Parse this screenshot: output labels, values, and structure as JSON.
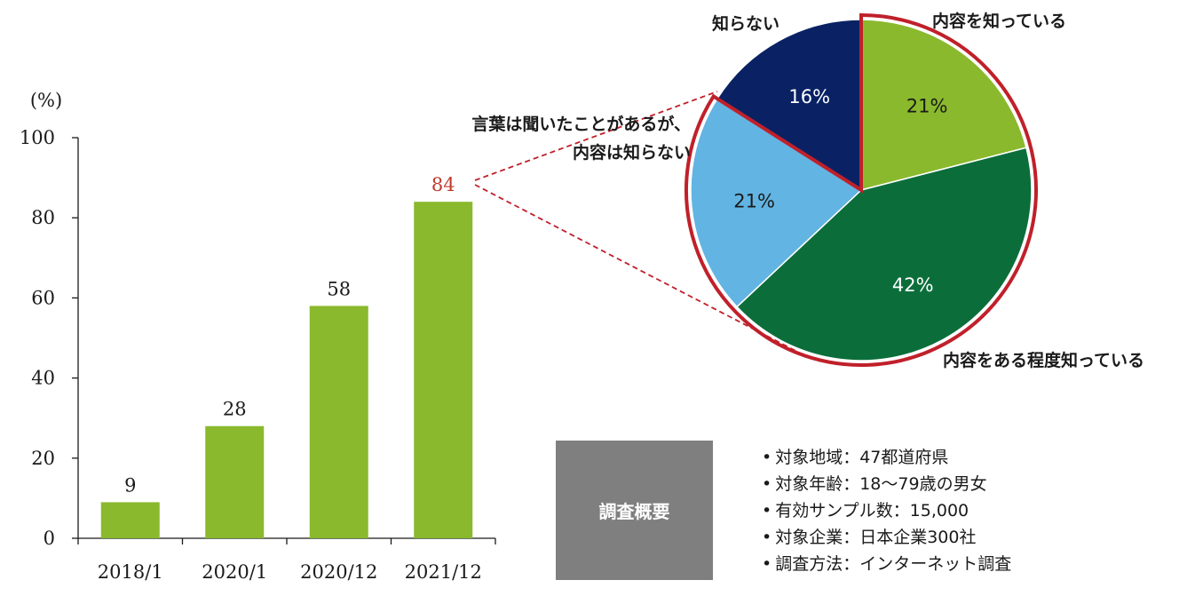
{
  "chart_data": [
    {
      "type": "bar",
      "ylabel": "(%)",
      "ylim": [
        0,
        100
      ],
      "yticks": [
        "0",
        "20",
        "40",
        "60",
        "80",
        "100"
      ],
      "categories": [
        "2018/1",
        "2020/1",
        "2020/12",
        "2021/12"
      ],
      "values": [
        9,
        28,
        58,
        84
      ],
      "value_labels": [
        "9",
        "28",
        "58",
        "84"
      ],
      "bar_color": "#8ab92d",
      "highlight_label_color": "#c0392b",
      "grid": false
    },
    {
      "type": "pie",
      "slices": [
        {
          "label": "内容を知っている",
          "value": 21,
          "pct_label": "21%",
          "color": "#8ab92d"
        },
        {
          "label": "内容をある程度知っている",
          "value": 42,
          "pct_label": "42%",
          "color": "#0b6e3a"
        },
        {
          "label": "言葉は聞いたことがあるが、内容は知らない",
          "label_lines": [
            "言葉は聞いたことがあるが、",
            "内容は知らない"
          ],
          "value": 21,
          "pct_label": "21%",
          "color": "#62b4e2"
        },
        {
          "label": "知らない",
          "value": 16,
          "pct_label": "16%",
          "color": "#0a2264"
        }
      ],
      "highlight_color": "#c0202a"
    }
  ],
  "survey": {
    "title": "調査概要",
    "items": [
      "対象地域：47都道府県",
      "対象年齢：18～79歳の男女",
      "有効サンプル数：15,000",
      "対象企業：日本企業300社",
      "調査方法：インターネット調査"
    ]
  }
}
